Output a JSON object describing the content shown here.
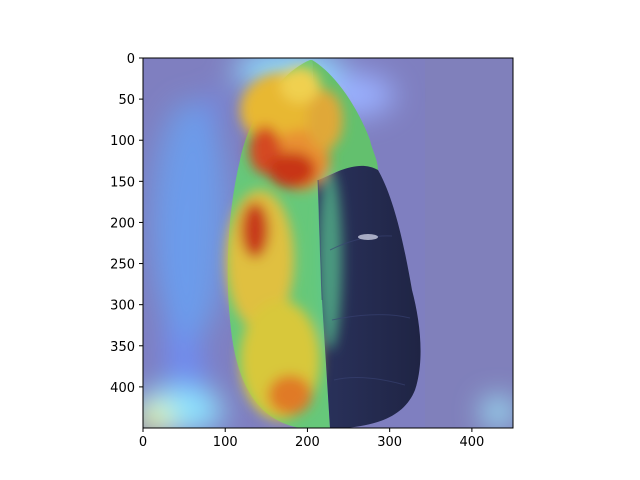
{
  "figure": {
    "x_ticks": [
      "0",
      "100",
      "200",
      "300",
      "400"
    ],
    "y_ticks": [
      "0",
      "50",
      "100",
      "150",
      "200",
      "250",
      "300",
      "350",
      "400"
    ]
  },
  "chart_data": {
    "type": "heatmap",
    "title": "",
    "xlabel": "",
    "ylabel": "",
    "xlim": [
      0,
      450
    ],
    "ylim": [
      450,
      0
    ],
    "x_ticks": [
      0,
      100,
      200,
      300,
      400
    ],
    "y_ticks": [
      0,
      50,
      100,
      150,
      200,
      250,
      300,
      350,
      400
    ],
    "grid": false,
    "legend": "none",
    "colormap": "jet",
    "overlay_subject": "leaf"
  },
  "colors": {
    "background_overlay": "#7f7fc0",
    "hot": "#cc2a10",
    "warm": "#e8d234",
    "cool": "#66ee88",
    "cyan": "#7fe8ff",
    "leaf_dark": "#22284a"
  }
}
